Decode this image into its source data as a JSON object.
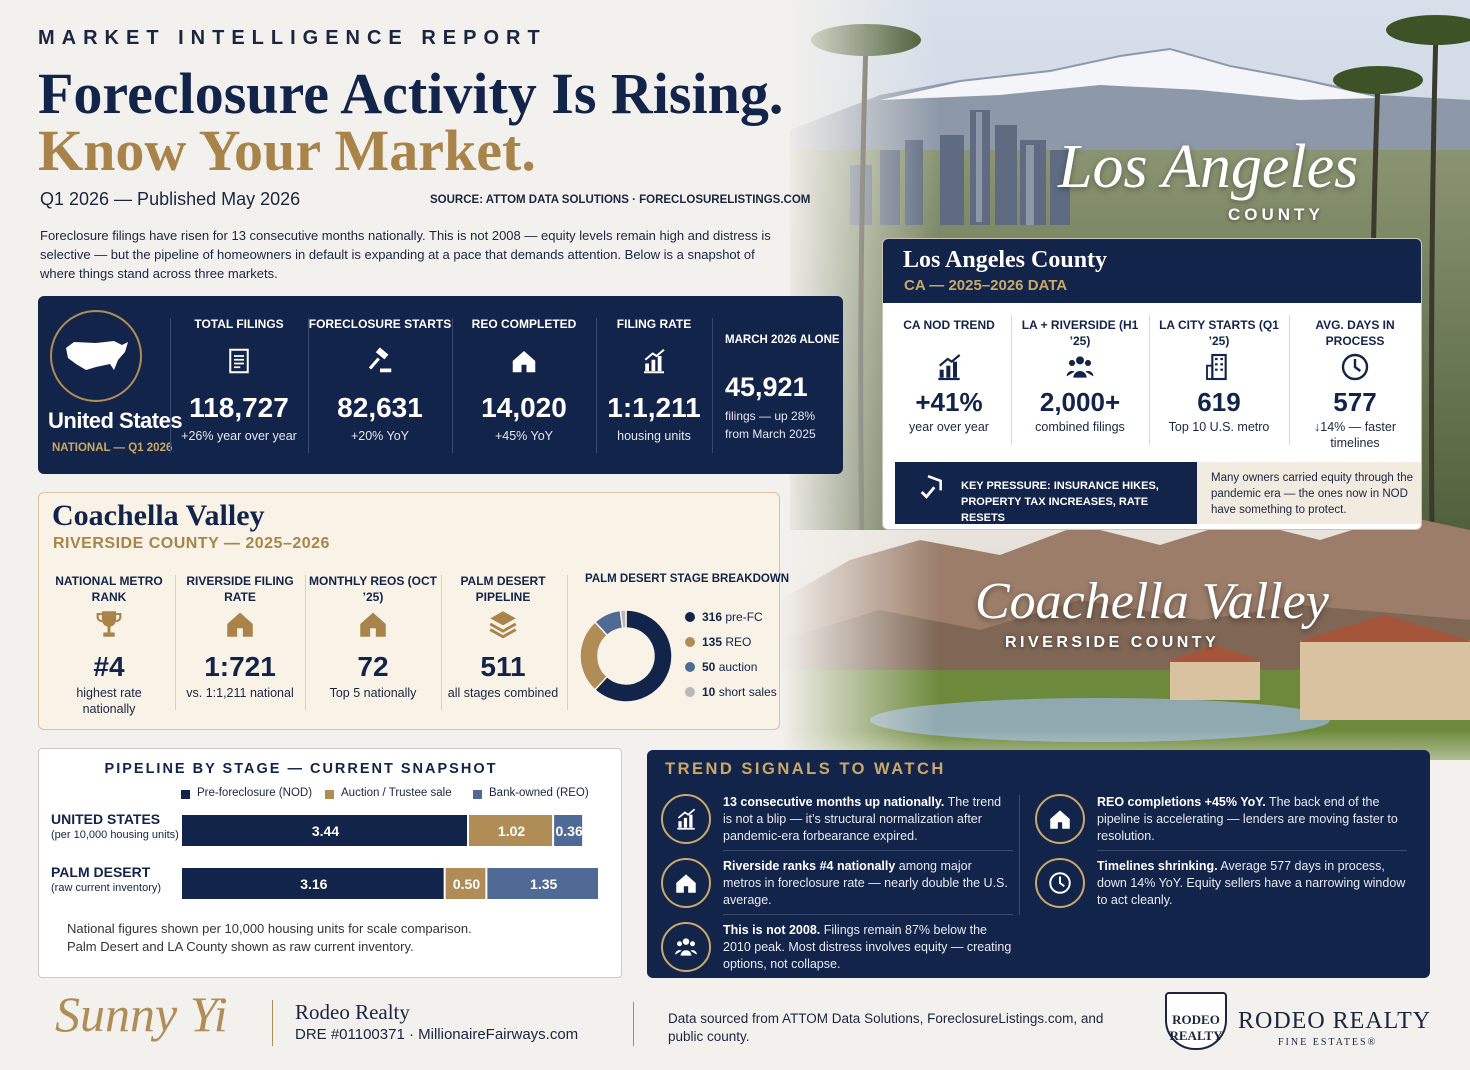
{
  "header": {
    "kicker": "MARKET INTELLIGENCE REPORT",
    "title_line1": "Foreclosure Activity Is Rising.",
    "title_line2": "Know Your Market.",
    "date": "Q1 2026 — Published May 2026",
    "source": "SOURCE: ATTOM DATA SOLUTIONS · FORECLOSURELISTINGS.COM",
    "intro": "Foreclosure filings have risen for 13 consecutive months nationally. This is not 2008 — equity levels remain high and distress is selective — but the pipeline of homeowners in default is expanding at a pace that demands attention. Below is a snapshot of where things stand across three markets."
  },
  "national": {
    "name": "United States",
    "subtitle": "NATIONAL — Q1 2026",
    "stats": [
      {
        "label": "TOTAL FILINGS",
        "value": "118,727",
        "note": "+26% year over year"
      },
      {
        "label": "FORECLOSURE STARTS",
        "value": "82,631",
        "note": "+20% YoY"
      },
      {
        "label": "REO COMPLETED",
        "value": "14,020",
        "note": "+45% YoY"
      },
      {
        "label": "FILING RATE",
        "value": "1:1,211",
        "note": "housing units"
      },
      {
        "label": "MARCH 2026 ALONE",
        "value": "45,921",
        "note": "filings — up 28% from March 2025"
      }
    ]
  },
  "los_angeles": {
    "photo_script": "Los Angeles",
    "photo_caption": "COUNTY",
    "title": "Los Angeles County",
    "subtitle": "CA — 2025–2026 DATA",
    "stats": [
      {
        "label": "CA NOD TREND",
        "value": "+41%",
        "note": "year over year"
      },
      {
        "label": "LA + RIVERSIDE (H1 ’25)",
        "value": "2,000+",
        "note": "combined filings"
      },
      {
        "label": "LA CITY STARTS (Q1 ’25)",
        "value": "619",
        "note": "Top 10 U.S. metro"
      },
      {
        "label": "AVG. DAYS IN PROCESS",
        "value": "577",
        "note": "↓14% — faster timelines"
      }
    ],
    "key_pressure": "KEY PRESSURE: INSURANCE HIKES, PROPERTY TAX INCREASES, RATE RESETS",
    "note": "Many owners carried equity through the pandemic era — the ones now in NOD have something to protect."
  },
  "coachella": {
    "photo_script": "Coachella Valley",
    "photo_caption": "RIVERSIDE COUNTY",
    "title": "Coachella Valley",
    "subtitle": "RIVERSIDE COUNTY — 2025–2026",
    "stats": [
      {
        "label": "NATIONAL METRO RANK",
        "value": "#4",
        "note": "highest rate nationally"
      },
      {
        "label": "RIVERSIDE FILING RATE",
        "value": "1:721",
        "note": "vs. 1:1,211 national"
      },
      {
        "label": "MONTHLY REOS (OCT ’25)",
        "value": "72",
        "note": "Top 5 nationally"
      },
      {
        "label": "PALM DESERT PIPELINE",
        "value": "511",
        "note": "all stages combined"
      }
    ]
  },
  "chart_data": [
    {
      "type": "pie",
      "donut": true,
      "title": "PALM DESERT STAGE BREAKDOWN",
      "categories": [
        "pre-FC",
        "REO",
        "auction",
        "short sales"
      ],
      "values": [
        316,
        135,
        50,
        10
      ],
      "colors": [
        "#13244a",
        "#b08d57",
        "#4f6a94",
        "#b8b8b8"
      ]
    },
    {
      "type": "bar",
      "orientation": "horizontal",
      "stacked": true,
      "title": "PIPELINE BY STAGE — CURRENT SNAPSHOT",
      "categories": [
        "UNITED STATES",
        "PALM DESERT"
      ],
      "category_notes": [
        "(per 10,000 housing units)",
        "(raw current inventory)"
      ],
      "series": [
        {
          "name": "Pre-foreclosure (NOD)",
          "color": "#13244a",
          "values": [
            3.44,
            3.16
          ]
        },
        {
          "name": "Auction / Trustee sale",
          "color": "#b08d57",
          "values": [
            1.02,
            0.5
          ],
          "value_labels": [
            "1.02",
            "0.50"
          ]
        },
        {
          "name": "Bank-owned (REO)",
          "color": "#4f6a94",
          "values": [
            0.36,
            1.35
          ]
        }
      ],
      "footnote": [
        "National figures shown per 10,000 housing units for scale comparison.",
        "Palm Desert and LA County shown as raw current inventory."
      ]
    }
  ],
  "trends": {
    "title": "TREND SIGNALS TO WATCH",
    "items": [
      {
        "lead": "13 consecutive months up nationally.",
        "text": " The trend is not a blip — it’s structural normalization after pandemic-era forbearance expired."
      },
      {
        "lead": "Riverside ranks #4 nationally",
        "text": " among major metros in foreclosure rate — nearly double the U.S. average."
      },
      {
        "lead": "This is not 2008.",
        "text": " Filings remain 87% below the 2010 peak. Most distress involves equity — creating options, not collapse."
      },
      {
        "lead": "REO completions +45% YoY.",
        "text": " The back end of the pipeline is accelerating — lenders are moving faster to resolution."
      },
      {
        "lead": "Timelines shrinking.",
        "text": " Average 577 days in process, down 14% YoY. Equity sellers have a narrowing window to act cleanly."
      }
    ]
  },
  "footer": {
    "signature": "Sunny Yi",
    "company": "Rodeo Realty",
    "license": "DRE #01100371 · MillionaireFairways.com",
    "sources": "Data sourced from ATTOM Data Solutions, ForeclosureListings.com, and public county.",
    "emblem": [
      "RODEO",
      "REALTY"
    ],
    "logo_name": "RODEO REALTY",
    "logo_tagline": "FINE ESTATES®"
  }
}
